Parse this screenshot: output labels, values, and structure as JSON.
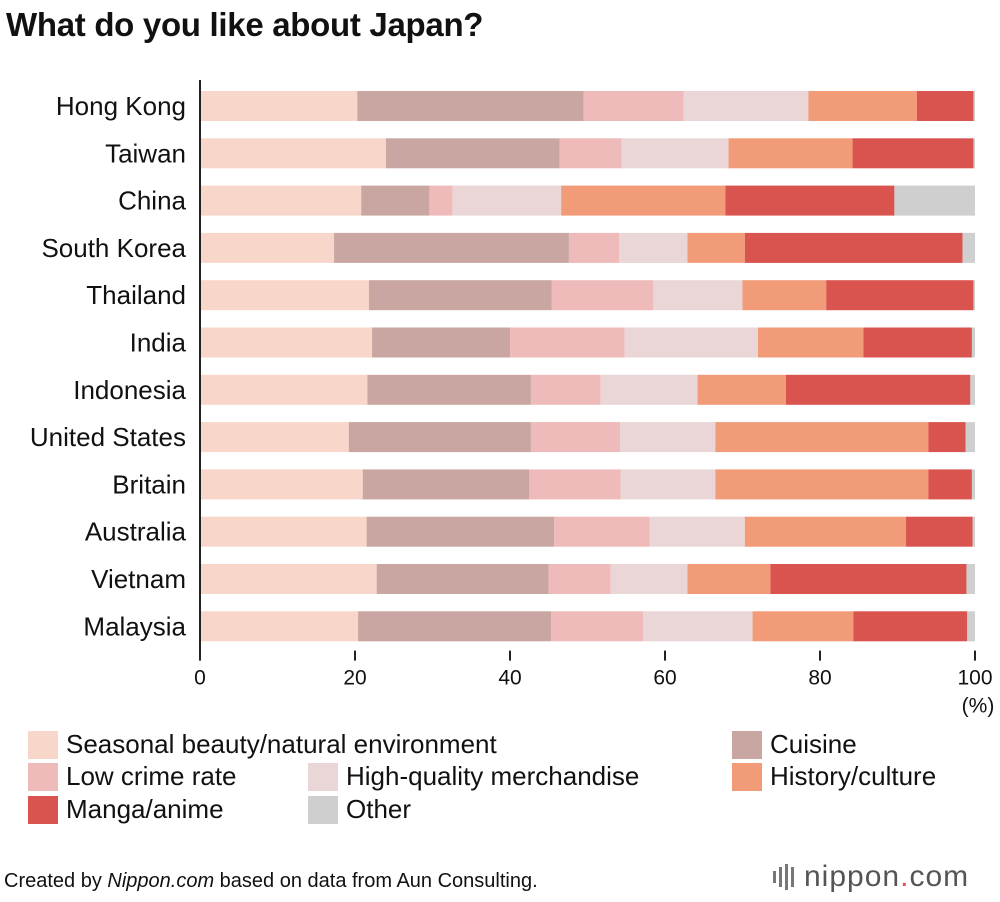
{
  "title": "What do you like about Japan?",
  "unit_label": "(%)",
  "source": {
    "prefix": "Created by ",
    "site": "Nippon.com",
    "suffix": " based on data from Aun Consulting."
  },
  "brand": {
    "name": "nippon",
    "dot": ".",
    "tld": "com"
  },
  "colors": {
    "seasonal": "#f8d6c9",
    "cuisine": "#c9a6a1",
    "crime": "#efbaba",
    "merch": "#ead6d6",
    "history": "#f19b79",
    "manga": "#d9534f",
    "other": "#cfcfcf"
  },
  "chart_data": {
    "type": "bar",
    "orientation": "horizontal",
    "stacked": true,
    "xlim": [
      0,
      100
    ],
    "xticks": [
      0,
      20,
      40,
      60,
      80,
      100
    ],
    "categories": [
      "Hong Kong",
      "Taiwan",
      "China",
      "South Korea",
      "Thailand",
      "India",
      "Indonesia",
      "United States",
      "Britain",
      "Australia",
      "Vietnam",
      "Malaysia"
    ],
    "series": [
      {
        "key": "seasonal",
        "name": "Seasonal beauty/natural environment",
        "values": [
          20.3,
          24.0,
          20.8,
          17.3,
          21.8,
          22.2,
          21.6,
          19.2,
          21.0,
          21.5,
          22.8,
          20.4
        ]
      },
      {
        "key": "cuisine",
        "name": "Cuisine",
        "values": [
          29.2,
          22.4,
          8.8,
          30.3,
          23.6,
          17.8,
          21.1,
          23.5,
          21.5,
          24.2,
          22.2,
          24.9
        ]
      },
      {
        "key": "crime",
        "name": "Low crime rate",
        "values": [
          12.9,
          8.0,
          3.0,
          6.5,
          13.1,
          14.8,
          9.0,
          11.5,
          11.8,
          12.3,
          8.0,
          11.9
        ]
      },
      {
        "key": "merch",
        "name": "High-quality merchandise",
        "values": [
          16.1,
          13.8,
          14.0,
          8.8,
          11.5,
          17.2,
          12.5,
          12.3,
          12.2,
          12.3,
          9.9,
          14.1
        ]
      },
      {
        "key": "history",
        "name": "History/culture",
        "values": [
          14.0,
          16.0,
          21.2,
          7.4,
          10.8,
          13.6,
          11.4,
          27.5,
          27.5,
          20.8,
          10.7,
          13.0
        ]
      },
      {
        "key": "manga",
        "name": "Manga/anime",
        "values": [
          7.3,
          15.6,
          21.8,
          28.1,
          19.0,
          14.0,
          23.8,
          4.8,
          5.6,
          8.6,
          25.3,
          14.7
        ]
      },
      {
        "key": "other",
        "name": "Other",
        "values": [
          0.2,
          0.2,
          10.4,
          1.6,
          0.2,
          0.4,
          0.6,
          1.2,
          0.4,
          0.3,
          1.1,
          1.0
        ]
      }
    ]
  }
}
